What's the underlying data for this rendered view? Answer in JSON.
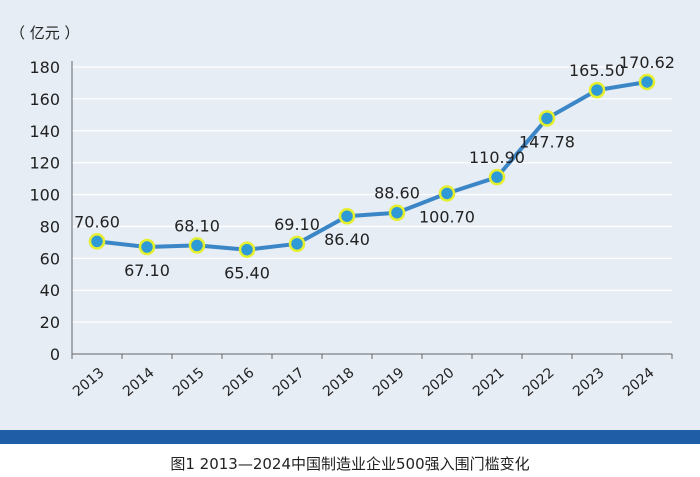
{
  "chart_data": {
    "type": "line",
    "unit_label": "（ 亿元 ）",
    "title": "图1   2013—2024中国制造业企业500强入围门槛变化",
    "x": [
      "2013",
      "2014",
      "2015",
      "2016",
      "2017",
      "2018",
      "2019",
      "2020",
      "2021",
      "2022",
      "2023",
      "2024"
    ],
    "values": [
      70.6,
      67.1,
      68.1,
      65.4,
      69.1,
      86.4,
      88.6,
      100.7,
      110.9,
      147.78,
      165.5,
      170.62
    ],
    "labels": [
      "70.60",
      "67.10",
      "68.10",
      "65.40",
      "69.10",
      "86.40",
      "88.60",
      "100.70",
      "110.90",
      "147.78",
      "165.50",
      "170.62"
    ],
    "label_positions": [
      "above",
      "below",
      "above",
      "below",
      "above",
      "below",
      "above",
      "below",
      "above",
      "below",
      "above",
      "above"
    ],
    "ylim": [
      0,
      180
    ],
    "yticks": [
      0,
      20,
      40,
      60,
      80,
      100,
      120,
      140,
      160,
      180
    ],
    "grid": true,
    "colors": {
      "line": "#3b86c6",
      "marker_fill": "#2e9bd6",
      "marker_edge": "#e5ef2d",
      "grid": "#ffffff",
      "band": "#1f5ea6"
    }
  }
}
